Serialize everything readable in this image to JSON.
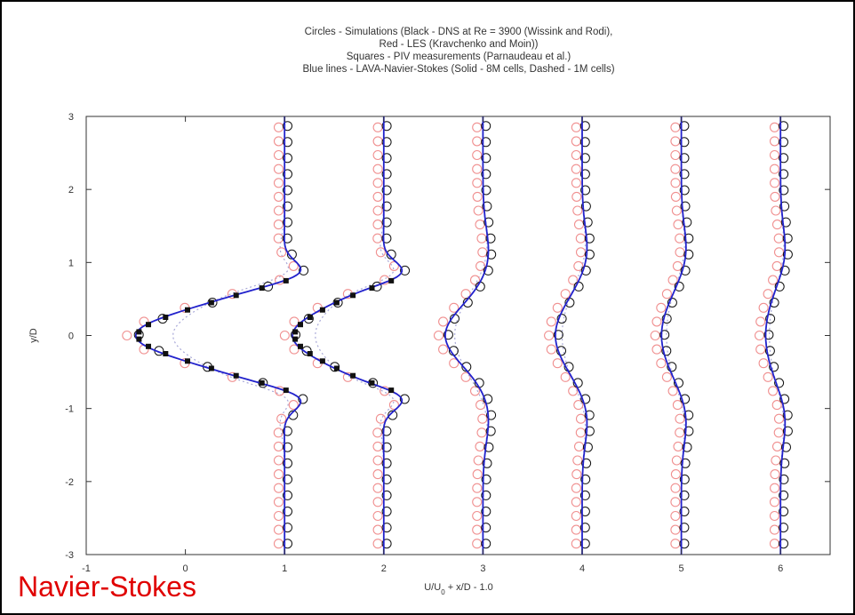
{
  "caption": "Navier-Stokes",
  "colors": {
    "blue": "#2222cc",
    "red": "#f09090",
    "black": "#111111",
    "caption_red": "#e00000",
    "dotted": "#a8a8d8"
  },
  "chart_data": {
    "type": "line",
    "title_lines": [
      "Circles - Simulations (Black - DNS at Re = 3900 (Wissink and Rodi),",
      "Red - LES (Kravchenko and Moin))",
      "Squares - PIV measurements (Parnaudeau et al.)",
      "Blue lines - LAVA-Navier-Stokes (Solid - 8M cells, Dashed - 1M cells)"
    ],
    "xlabel": "U/U",
    "xlabel_sub": "0",
    "xlabel_suffix": " + x/D - 1.0",
    "ylabel": "y/D",
    "xlim": [
      -1,
      6.5
    ],
    "ylim": [
      -3,
      3
    ],
    "xticks": [
      "-1",
      "0",
      "1",
      "2",
      "3",
      "4",
      "5",
      "6"
    ],
    "yticks": [
      "-3",
      "-2",
      "-1",
      "0",
      "1",
      "2",
      "3"
    ],
    "grid": false,
    "stations": [
      {
        "x_over_D": 1,
        "offset": 0,
        "depth": 1.5,
        "width": 0.55,
        "steep": 4
      },
      {
        "x_over_D": 2,
        "offset": 1,
        "depth": 0.92,
        "width": 0.58,
        "steep": 4
      },
      {
        "x_over_D": 3,
        "offset": 2,
        "depth": 0.38,
        "width": 0.55,
        "steep": 2.2
      },
      {
        "x_over_D": 4,
        "offset": 3,
        "depth": 0.27,
        "width": 0.65,
        "steep": 2.0
      },
      {
        "x_over_D": 5,
        "offset": 4,
        "depth": 0.2,
        "width": 0.7,
        "steep": 1.8
      },
      {
        "x_over_D": 6,
        "offset": 5,
        "depth": 0.15,
        "width": 0.75,
        "steep": 1.6
      }
    ],
    "series": [
      {
        "style": "solid"
      },
      {
        "style": "dashed"
      },
      {
        "style": "circles-black"
      },
      {
        "style": "circles-red"
      },
      {
        "style": "squares"
      }
    ]
  }
}
